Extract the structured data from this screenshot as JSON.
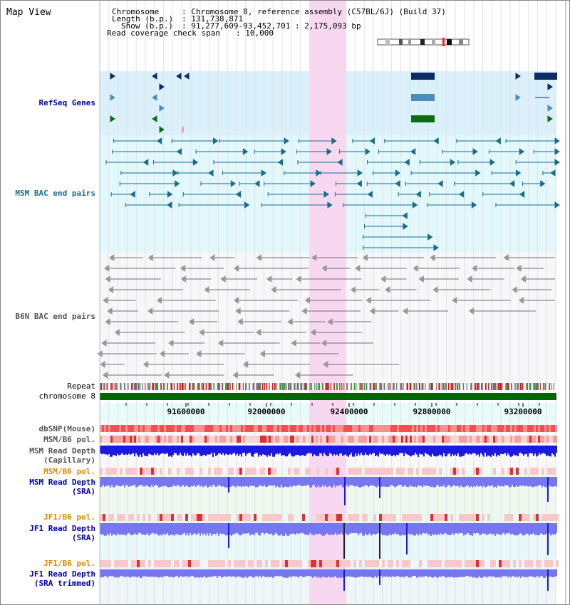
{
  "view": {
    "title": "Map View",
    "info": {
      "chromosome_label": "Chromosome",
      "chromosome_value": ": Chromosome 8, reference assembly (C57BL/6J) (Build 37)",
      "length_label": "Length (b.p.)",
      "length_value": ": 131,738,871",
      "show_label": "Show (b.p.)",
      "show_value": ": 91,277,609-93,452,701 : 2,175,093 bp",
      "coverage_label": "Read coverage check span",
      "coverage_value": ": 10,000"
    }
  },
  "tracks": {
    "refseq": "RefSeq Genes",
    "msm_bac": "MSM BAC end pairs",
    "b6n_bac": "B6N BAC end pairs",
    "repeat": "Repeat",
    "chromosome": "chromosome 8",
    "dbsnp": "dbSNP(Mouse)",
    "msm_b6_pol_1": "MSM/B6 pol.",
    "msm_read_depth_cap_1": "MSM Read Depth",
    "msm_read_depth_cap_2": "(Capillary)",
    "msm_b6_pol_2": "MSM/B6 pol.",
    "msm_read_depth_sra_1": "MSM Read Depth",
    "msm_read_depth_sra_2": "(SRA)",
    "jf1_b6_pol_1": "JF1/B6 pol.",
    "jf1_read_depth_sra_1": "JF1 Read Depth",
    "jf1_read_depth_sra_2": "(SRA)",
    "jf1_b6_pol_2": "JF1/B6 pol.",
    "jf1_read_depth_trim_1": "JF1 Read Depth",
    "jf1_read_depth_trim_2": "(SRA trimmed)"
  },
  "axis": {
    "ticks": [
      "91600000",
      "92000000",
      "92400000",
      "92800000",
      "93200000"
    ],
    "range_start": 91277609,
    "range_end": 93452701
  },
  "colors": {
    "refseq_dark": "#0a2b63",
    "refseq_mid": "#4a8ebb",
    "refseq_green": "#0a6d12",
    "msm_line": "#1a6d8c",
    "b6n_line": "#707070",
    "chromosome": "#006600",
    "highlight": "#f8d8f0",
    "msm_depth": "#1a1ae0",
    "sra_depth": "#7676f0",
    "dbsnp": "#f05050",
    "pol_label": "#e08a00",
    "depth_label": "#0000aa"
  }
}
